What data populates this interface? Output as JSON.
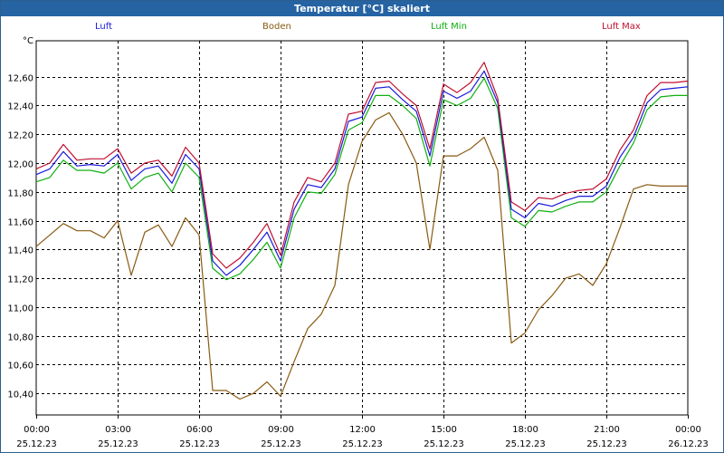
{
  "title": "Temperatur [°C] skaliert",
  "unit": "°C",
  "colors": {
    "titlebar": "#2563a3",
    "luft": "#1a1adc",
    "boden": "#8a5a12",
    "luft_min": "#10b010",
    "luft_max": "#c01030",
    "grid": "#000000"
  },
  "chart_data": {
    "type": "line",
    "ylim": [
      10.25,
      12.85
    ],
    "xlim": [
      0,
      24
    ],
    "grid": true,
    "legend_position": "top",
    "yticks": [
      "10,40",
      "10,60",
      "10,80",
      "11,00",
      "11,20",
      "11,40",
      "11,60",
      "11,80",
      "12,00",
      "12,20",
      "12,40",
      "12,60"
    ],
    "yticks_values": [
      10.4,
      10.6,
      10.8,
      11.0,
      11.2,
      11.4,
      11.6,
      11.8,
      12.0,
      12.2,
      12.4,
      12.6
    ],
    "xticks": [
      {
        "time": "00:00",
        "date": "25.12.23"
      },
      {
        "time": "03:00",
        "date": "25.12.23"
      },
      {
        "time": "06:00",
        "date": "25.12.23"
      },
      {
        "time": "09:00",
        "date": "25.12.23"
      },
      {
        "time": "12:00",
        "date": "25.12.23"
      },
      {
        "time": "15:00",
        "date": "25.12.23"
      },
      {
        "time": "18:00",
        "date": "25.12.23"
      },
      {
        "time": "21:00",
        "date": "25.12.23"
      },
      {
        "time": "00:00",
        "date": "26.12.23"
      }
    ],
    "x": [
      0,
      0.5,
      1,
      1.5,
      2,
      2.5,
      3,
      3.5,
      4,
      4.5,
      5,
      5.5,
      6,
      6.5,
      7,
      7.5,
      8,
      8.5,
      9,
      9.5,
      10,
      10.5,
      11,
      11.5,
      12,
      12.5,
      13,
      13.5,
      14,
      14.5,
      15,
      15.5,
      16,
      16.5,
      17,
      17.5,
      18,
      18.5,
      19,
      19.5,
      20,
      20.5,
      21,
      21.5,
      22,
      22.5,
      23,
      23.5,
      24
    ],
    "series": [
      {
        "name": "Luft",
        "key": "luft",
        "values": [
          11.92,
          11.96,
          12.08,
          11.98,
          11.99,
          11.98,
          12.06,
          11.88,
          11.96,
          11.98,
          11.86,
          12.06,
          11.96,
          11.32,
          11.22,
          11.29,
          11.4,
          11.52,
          11.32,
          11.68,
          11.85,
          11.83,
          11.96,
          12.29,
          12.32,
          12.52,
          12.53,
          12.44,
          12.36,
          12.05,
          12.5,
          12.45,
          12.5,
          12.64,
          12.42,
          11.68,
          11.62,
          11.72,
          11.7,
          11.74,
          11.77,
          11.77,
          11.84,
          12.04,
          12.18,
          12.42,
          12.51,
          12.52,
          12.53
        ]
      },
      {
        "name": "Boden",
        "key": "boden",
        "values": [
          11.42,
          11.5,
          11.58,
          11.53,
          11.53,
          11.48,
          11.6,
          11.22,
          11.52,
          11.57,
          11.42,
          11.62,
          11.5,
          10.42,
          10.42,
          10.36,
          10.4,
          10.48,
          10.38,
          10.62,
          10.85,
          10.95,
          11.15,
          11.85,
          12.15,
          12.3,
          12.35,
          12.2,
          12.0,
          11.4,
          12.05,
          12.05,
          12.1,
          12.18,
          11.95,
          10.75,
          10.82,
          10.98,
          11.08,
          11.2,
          11.23,
          11.15,
          11.3,
          11.55,
          11.82,
          11.85,
          11.84,
          11.84,
          11.84
        ]
      },
      {
        "name": "Luft Min",
        "key": "luft_min",
        "values": [
          11.87,
          11.9,
          12.02,
          11.95,
          11.95,
          11.93,
          12.0,
          11.82,
          11.9,
          11.93,
          11.8,
          12.0,
          11.9,
          11.27,
          11.19,
          11.23,
          11.33,
          11.45,
          11.27,
          11.62,
          11.8,
          11.79,
          11.92,
          12.23,
          12.28,
          12.47,
          12.47,
          12.4,
          12.31,
          11.98,
          12.44,
          12.4,
          12.45,
          12.59,
          12.38,
          11.62,
          11.56,
          11.67,
          11.66,
          11.7,
          11.73,
          11.73,
          11.8,
          11.98,
          12.14,
          12.37,
          12.46,
          12.47,
          12.47
        ]
      },
      {
        "name": "Luft Max",
        "key": "luft_max",
        "values": [
          11.96,
          12.0,
          12.13,
          12.02,
          12.03,
          12.03,
          12.1,
          11.93,
          12.0,
          12.02,
          11.91,
          12.11,
          12.0,
          11.37,
          11.27,
          11.34,
          11.45,
          11.58,
          11.36,
          11.73,
          11.9,
          11.87,
          12.0,
          12.34,
          12.36,
          12.56,
          12.57,
          12.48,
          12.4,
          12.1,
          12.55,
          12.49,
          12.56,
          12.7,
          12.45,
          11.73,
          11.67,
          11.76,
          11.75,
          11.79,
          11.81,
          11.82,
          11.89,
          12.09,
          12.23,
          12.47,
          12.56,
          12.56,
          12.57
        ]
      }
    ]
  }
}
